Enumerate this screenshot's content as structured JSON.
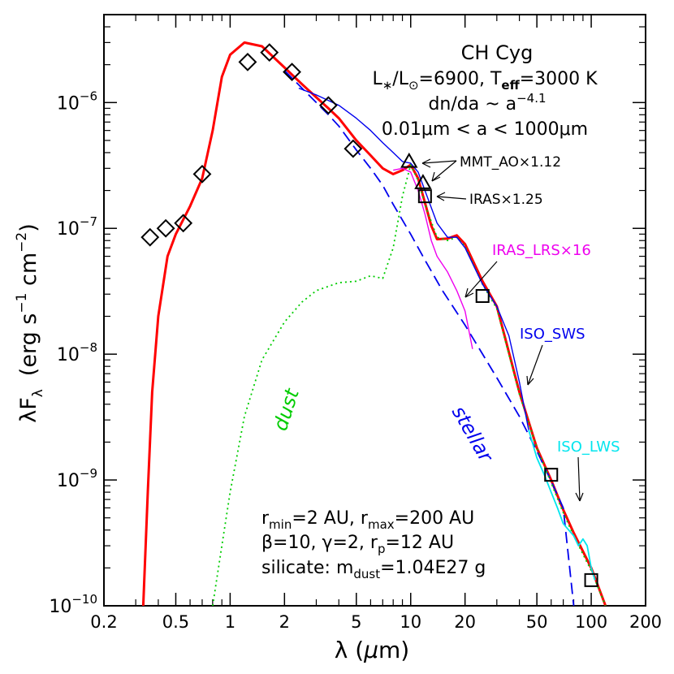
{
  "chart_data": {
    "type": "line",
    "scale": {
      "x": "log",
      "y": "log"
    },
    "xlim": [
      0.2,
      200
    ],
    "ylim": [
      1e-10,
      5e-06
    ],
    "x_ticks": [
      {
        "v": 0.2,
        "label": "0.2"
      },
      {
        "v": 0.5,
        "label": "0.5"
      },
      {
        "v": 1,
        "label": "1"
      },
      {
        "v": 2,
        "label": "2"
      },
      {
        "v": 5,
        "label": "5"
      },
      {
        "v": 10,
        "label": "10"
      },
      {
        "v": 20,
        "label": "20"
      },
      {
        "v": 50,
        "label": "50"
      },
      {
        "v": 100,
        "label": "100"
      },
      {
        "v": 200,
        "label": "200"
      }
    ],
    "y_ticks": [
      {
        "v": 1e-10,
        "base": "10",
        "exp": "−10"
      },
      {
        "v": 1e-09,
        "base": "10",
        "exp": "−9"
      },
      {
        "v": 1e-08,
        "base": "10",
        "exp": "−8"
      },
      {
        "v": 1e-07,
        "base": "10",
        "exp": "−7"
      },
      {
        "v": 1e-06,
        "base": "10",
        "exp": "−6"
      }
    ],
    "xlabel": {
      "pre": "λ (",
      "mu": "μ",
      "post": "m)"
    },
    "ylabel": {
      "lam": "λF",
      "sub": "λ",
      "open": "(erg s",
      "exp1": "−1",
      "cm": " cm",
      "exp2": "−2",
      "close": ")"
    },
    "title_block": {
      "name": "CH Cyg",
      "line2": {
        "a": "L",
        "b": "∗",
        "c": "/L",
        "d": "⊙",
        "e": "=6900, T",
        "f": "eff",
        "g": "=3000 K"
      },
      "line3": {
        "a": "dn/da ~ a",
        "b": "−4.1"
      },
      "line4": "0.01μm < a < 1000μm"
    },
    "params_block": {
      "line1": {
        "a": "r",
        "b": "min",
        "c": "=2 AU, r",
        "d": "max",
        "e": "=200 AU"
      },
      "line2": {
        "a": "β=10, γ=2, r",
        "b": "p",
        "c": "=12 AU"
      },
      "line3": {
        "a": "silicate: m",
        "b": "dust",
        "c": "=1.04E27 g"
      }
    },
    "annotations": {
      "mmt": "MMT_AO×1.12",
      "iras": "IRAS×1.25",
      "iras_lrs": "IRAS_LRS×16",
      "iso_sws": "ISO_SWS",
      "iso_lws": "ISO_LWS",
      "dust": "dust",
      "stellar": "stellar"
    },
    "colors": {
      "model": "#ff0000",
      "dust": "#00cc00",
      "stellar": "#0000ee",
      "iso_sws": "#0000ee",
      "iras_lrs": "#ee00ee",
      "iso_lws": "#00e5ee",
      "markers": "#000000"
    },
    "series": [
      {
        "name": "model",
        "style": "solid",
        "color": "#ff0000",
        "x": [
          0.33,
          0.35,
          0.37,
          0.4,
          0.45,
          0.5,
          0.6,
          0.7,
          0.8,
          0.9,
          1.0,
          1.2,
          1.5,
          2.0,
          2.5,
          3.0,
          3.5,
          4.0,
          5.0,
          6.0,
          7.0,
          8.0,
          9.0,
          10.0,
          11.0,
          12.0,
          13.0,
          14.0,
          16.0,
          18.0,
          20.0,
          25.0,
          30.0,
          40.0,
          50.0,
          60.0,
          70.0,
          80.0,
          100.0,
          120.0
        ],
        "y": [
          1e-10,
          8e-10,
          5e-09,
          2e-08,
          6e-08,
          9e-08,
          1.5e-07,
          2.5e-07,
          6e-07,
          1.6e-06,
          2.4e-06,
          3e-06,
          2.8e-06,
          1.9e-06,
          1.4e-06,
          1.1e-06,
          9e-07,
          7.5e-07,
          5e-07,
          3.8e-07,
          3e-07,
          2.7e-07,
          2.9e-07,
          3.2e-07,
          2.5e-07,
          1.6e-07,
          1.05e-07,
          8.2e-08,
          8.3e-08,
          8.8e-08,
          7.5e-08,
          3.8e-08,
          2.4e-08,
          5e-09,
          1.8e-09,
          1e-09,
          5.8e-10,
          3.8e-10,
          2e-10,
          1e-10
        ]
      },
      {
        "name": "stellar",
        "style": "dashed",
        "color": "#0000ee",
        "x": [
          2.0,
          2.5,
          3.0,
          3.5,
          4.0,
          5.0,
          6.0,
          7.0,
          8.0,
          10.0,
          12.0,
          15.0,
          20.0,
          30.0,
          40.0,
          50.0,
          60.0,
          70.0,
          80.0
        ],
        "y": [
          1.8e-06,
          1.3e-06,
          1e-06,
          8e-07,
          6.5e-07,
          4.2e-07,
          3e-07,
          2.2e-07,
          1.55e-07,
          9e-08,
          5.6e-08,
          3.2e-08,
          1.7e-08,
          6.5e-09,
          3.2e-09,
          1.7e-09,
          9.8e-10,
          6e-10,
          1e-10
        ]
      },
      {
        "name": "dust",
        "style": "dotted",
        "color": "#00cc00",
        "x": [
          0.8,
          0.9,
          1.0,
          1.2,
          1.5,
          2.0,
          2.5,
          3.0,
          4.0,
          5.0,
          6.0,
          7.0,
          8.0,
          9.0,
          10.0,
          11.0,
          12.0,
          14.0,
          16.0,
          18.0,
          20.0,
          25.0,
          30.0,
          40.0,
          50.0,
          60.0,
          70.0,
          80.0,
          100.0,
          120.0
        ],
        "y": [
          1e-10,
          3e-10,
          8e-10,
          3.2e-09,
          9e-09,
          1.8e-08,
          2.6e-08,
          3.2e-08,
          3.7e-08,
          3.8e-08,
          4.2e-08,
          4e-08,
          7e-08,
          1.8e-07,
          3.2e-07,
          2.4e-07,
          1.55e-07,
          8.5e-08,
          8e-08,
          8.5e-08,
          7.2e-08,
          3.6e-08,
          2.3e-08,
          4.8e-09,
          1.8e-09,
          9.5e-10,
          5.5e-10,
          3.6e-10,
          1.9e-10,
          1e-10
        ]
      },
      {
        "name": "ISO_SWS",
        "style": "solid",
        "color": "#0000ee",
        "x": [
          2.4,
          3.0,
          4.0,
          5.0,
          6.0,
          7.0,
          8.0,
          9.0,
          10.0,
          11.0,
          12.0,
          14.0,
          16.0,
          18.0,
          20.0,
          25.0,
          30.0,
          35.0,
          40.0,
          45.0
        ],
        "y": [
          1.3e-06,
          1.15e-06,
          9.5e-07,
          7.5e-07,
          6e-07,
          4.8e-07,
          4e-07,
          3.4e-07,
          3.3e-07,
          2.8e-07,
          2e-07,
          1.1e-07,
          8.5e-08,
          8.5e-08,
          7e-08,
          3.6e-08,
          2.4e-08,
          1.4e-08,
          6e-09,
          2.5e-09
        ]
      },
      {
        "name": "IRAS_LRS",
        "style": "solid",
        "color": "#ee00ee",
        "x": [
          8.0,
          9.0,
          10.0,
          11.0,
          12.0,
          13.0,
          14.0,
          16.0,
          18.0,
          20.0,
          22.0
        ],
        "y": [
          2.9e-07,
          3e-07,
          2.8e-07,
          2e-07,
          1.3e-07,
          8e-08,
          6e-08,
          4.5e-08,
          3.2e-08,
          2.2e-08,
          1.1e-08
        ]
      },
      {
        "name": "ISO_LWS",
        "style": "solid",
        "color": "#00e5ee",
        "x": [
          45.0,
          50.0,
          55.0,
          60.0,
          65.0,
          70.0,
          75.0,
          80.0,
          85.0,
          90.0,
          95.0,
          100.0,
          105.0
        ],
        "y": [
          2.5e-09,
          1.5e-09,
          1.1e-09,
          8e-10,
          6e-10,
          4.5e-10,
          4e-10,
          3.6e-10,
          3e-10,
          3.4e-10,
          3e-10,
          2e-10,
          1.6e-10
        ]
      }
    ],
    "photometry_diamonds": [
      {
        "x": 0.36,
        "y": 8.5e-08
      },
      {
        "x": 0.44,
        "y": 1e-07
      },
      {
        "x": 0.55,
        "y": 1.1e-07
      },
      {
        "x": 0.7,
        "y": 2.7e-07
      },
      {
        "x": 1.25,
        "y": 2.1e-06
      },
      {
        "x": 1.65,
        "y": 2.5e-06
      },
      {
        "x": 2.2,
        "y": 1.75e-06
      },
      {
        "x": 3.5,
        "y": 9.5e-07
      },
      {
        "x": 4.8,
        "y": 4.3e-07
      }
    ],
    "mmt_triangles": [
      {
        "x": 9.8,
        "y": 3.4e-07
      },
      {
        "x": 11.7,
        "y": 2.3e-07
      }
    ],
    "iras_squares": [
      {
        "x": 12,
        "y": 1.8e-07
      },
      {
        "x": 25,
        "y": 2.9e-08
      },
      {
        "x": 60,
        "y": 1.1e-09
      },
      {
        "x": 100,
        "y": 1.6e-10
      }
    ]
  }
}
